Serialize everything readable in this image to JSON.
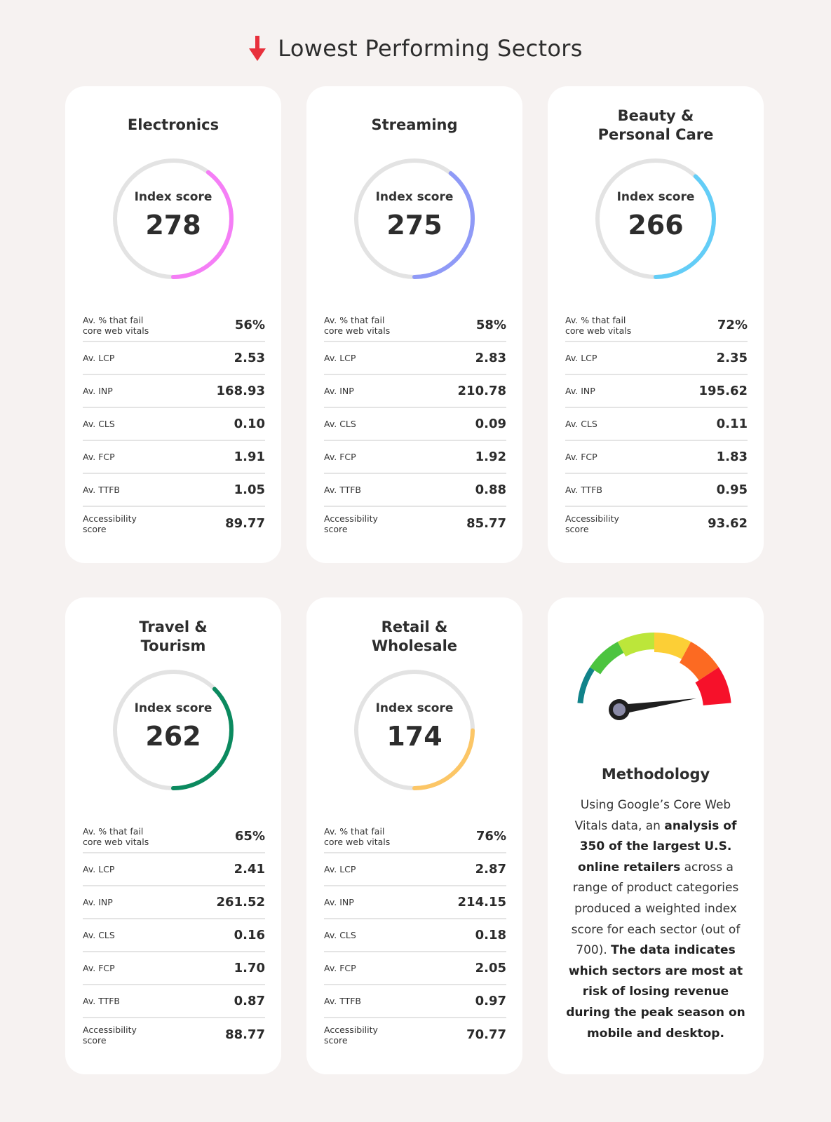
{
  "header": {
    "title": "Lowest Performing Sectors",
    "icon": "down-arrow-icon",
    "icon_color": "#e8303c"
  },
  "metric_labels": {
    "fail": "Av. % that fail\ncore web vitals",
    "lcp": "Av. LCP",
    "inp": "Av. INP",
    "cls": "Av. CLS",
    "fcp": "Av. FCP",
    "ttfb": "Av. TTFB",
    "access": "Accessibility\nscore"
  },
  "gauge_label": "Index score",
  "gauge_max": 700,
  "sectors": [
    {
      "title": "Electronics",
      "index": 278,
      "color": "#f57ef6",
      "fail": "56%",
      "lcp": "2.53",
      "inp": "168.93",
      "cls": "0.10",
      "fcp": "1.91",
      "ttfb": "1.05",
      "access": "89.77"
    },
    {
      "title": "Streaming",
      "index": 275,
      "color": "#8f9af7",
      "fail": "58%",
      "lcp": "2.83",
      "inp": "210.78",
      "cls": "0.09",
      "fcp": "1.92",
      "ttfb": "0.88",
      "access": "85.77"
    },
    {
      "title": "Beauty &\nPersonal Care",
      "index": 266,
      "color": "#63cdf7",
      "fail": "72%",
      "lcp": "2.35",
      "inp": "195.62",
      "cls": "0.11",
      "fcp": "1.83",
      "ttfb": "0.95",
      "access": "93.62"
    },
    {
      "title": "Travel &\nTourism",
      "index": 262,
      "color": "#0b8a5f",
      "fail": "65%",
      "lcp": "2.41",
      "inp": "261.52",
      "cls": "0.16",
      "fcp": "1.70",
      "ttfb": "0.87",
      "access": "88.77"
    },
    {
      "title": "Retail &\nWholesale",
      "index": 174,
      "color": "#fcc666",
      "fail": "76%",
      "lcp": "2.87",
      "inp": "214.15",
      "cls": "0.18",
      "fcp": "2.05",
      "ttfb": "0.97",
      "access": "70.77"
    }
  ],
  "methodology": {
    "title": "Methodology",
    "body": [
      {
        "t": "Using Google’s Core Web Vitals data, an ",
        "b": false
      },
      {
        "t": "analysis of 350 of the largest U.S. online retailers",
        "b": true
      },
      {
        "t": " across a range of product categories produced a weighted index score for each sector (out of 700). ",
        "b": false
      },
      {
        "t": "The data indicates which sectors are most at risk of losing revenue during the peak season on mobile and desktop.",
        "b": true
      }
    ],
    "speedometer_colors": [
      "#11838a",
      "#4cc43f",
      "#bce63a",
      "#fccf36",
      "#fc6a22",
      "#f6112a"
    ]
  },
  "chart_data": {
    "type": "gauge",
    "title": "Lowest Performing Sectors",
    "categories": [
      "Electronics",
      "Streaming",
      "Beauty & Personal Care",
      "Travel & Tourism",
      "Retail & Wholesale"
    ],
    "series": [
      {
        "name": "Index score",
        "values": [
          278,
          275,
          266,
          262,
          174
        ]
      },
      {
        "name": "Av. % that fail core web vitals",
        "values": [
          56,
          58,
          72,
          65,
          76
        ]
      },
      {
        "name": "Av. LCP",
        "values": [
          2.53,
          2.83,
          2.35,
          2.41,
          2.87
        ]
      },
      {
        "name": "Av. INP",
        "values": [
          168.93,
          210.78,
          195.62,
          261.52,
          214.15
        ]
      },
      {
        "name": "Av. CLS",
        "values": [
          0.1,
          0.09,
          0.11,
          0.16,
          0.18
        ]
      },
      {
        "name": "Av. FCP",
        "values": [
          1.91,
          1.92,
          1.83,
          1.7,
          2.05
        ]
      },
      {
        "name": "Av. TTFB",
        "values": [
          1.05,
          0.88,
          0.95,
          0.87,
          0.97
        ]
      },
      {
        "name": "Accessibility score",
        "values": [
          89.77,
          85.77,
          93.62,
          88.77,
          70.77
        ]
      }
    ],
    "ylim": [
      0,
      700
    ]
  }
}
